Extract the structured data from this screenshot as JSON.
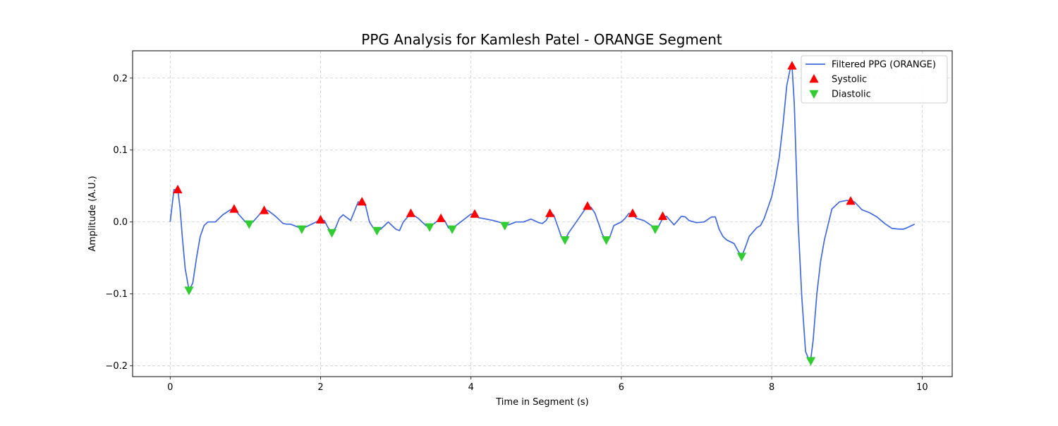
{
  "chart_data": {
    "type": "line",
    "title": "PPG Analysis for Kamlesh Patel - ORANGE Segment",
    "xlabel": "Time in Segment (s)",
    "ylabel": "Amplitude (A.U.)",
    "xlim": [
      -0.5,
      10.4
    ],
    "ylim": [
      -0.215,
      0.238
    ],
    "xticks": [
      0,
      2,
      4,
      6,
      8,
      10
    ],
    "xtick_labels": [
      "0",
      "2",
      "4",
      "6",
      "8",
      "10"
    ],
    "yticks": [
      -0.2,
      -0.1,
      0.0,
      0.1,
      0.2
    ],
    "ytick_labels": [
      "−0.2",
      "−0.1",
      "0.0",
      "0.1",
      "0.2"
    ],
    "grid": true,
    "legend_position": "top-right",
    "series": [
      {
        "name": "Filtered PPG (ORANGE)",
        "kind": "line",
        "color": "#4169e1",
        "x": [
          0.0,
          0.05,
          0.1,
          0.13,
          0.16,
          0.2,
          0.25,
          0.3,
          0.35,
          0.4,
          0.45,
          0.5,
          0.55,
          0.6,
          0.7,
          0.8,
          0.85,
          0.9,
          1.0,
          1.05,
          1.1,
          1.2,
          1.25,
          1.3,
          1.4,
          1.5,
          1.55,
          1.6,
          1.7,
          1.75,
          1.8,
          1.9,
          2.0,
          2.05,
          2.1,
          2.15,
          2.2,
          2.25,
          2.3,
          2.4,
          2.5,
          2.55,
          2.6,
          2.65,
          2.7,
          2.75,
          2.8,
          2.9,
          3.0,
          3.05,
          3.1,
          3.2,
          3.3,
          3.4,
          3.45,
          3.5,
          3.6,
          3.65,
          3.7,
          3.75,
          3.8,
          3.9,
          4.0,
          4.05,
          4.1,
          4.2,
          4.3,
          4.4,
          4.45,
          4.5,
          4.6,
          4.7,
          4.8,
          4.9,
          4.95,
          5.0,
          5.05,
          5.1,
          5.2,
          5.25,
          5.3,
          5.4,
          5.5,
          5.55,
          5.6,
          5.65,
          5.7,
          5.75,
          5.8,
          5.85,
          5.9,
          6.0,
          6.05,
          6.1,
          6.15,
          6.2,
          6.3,
          6.4,
          6.45,
          6.5,
          6.55,
          6.6,
          6.65,
          6.7,
          6.8,
          6.85,
          6.9,
          7.0,
          7.1,
          7.2,
          7.25,
          7.3,
          7.35,
          7.4,
          7.5,
          7.55,
          7.6,
          7.65,
          7.7,
          7.8,
          7.85,
          7.9,
          8.0,
          8.05,
          8.1,
          8.15,
          8.2,
          8.25,
          8.27,
          8.3,
          8.35,
          8.4,
          8.45,
          8.5,
          8.52,
          8.55,
          8.6,
          8.65,
          8.7,
          8.8,
          8.9,
          9.0,
          9.05,
          9.1,
          9.2,
          9.3,
          9.4,
          9.5,
          9.6,
          9.7,
          9.75,
          9.8,
          9.9
        ],
        "y": [
          0.0,
          0.045,
          0.045,
          0.02,
          -0.02,
          -0.065,
          -0.095,
          -0.085,
          -0.05,
          -0.02,
          -0.005,
          0.0,
          0.0,
          0.0,
          0.01,
          0.017,
          0.018,
          0.012,
          0.0,
          -0.003,
          0.0,
          0.012,
          0.016,
          0.016,
          0.008,
          -0.002,
          -0.003,
          -0.003,
          -0.007,
          -0.01,
          -0.007,
          -0.002,
          0.003,
          0.002,
          -0.008,
          -0.015,
          -0.008,
          0.005,
          0.01,
          0.002,
          0.028,
          0.027,
          0.022,
          0.0,
          -0.008,
          -0.012,
          -0.01,
          0.0,
          -0.01,
          -0.012,
          0.0,
          0.012,
          0.005,
          -0.005,
          -0.007,
          -0.003,
          0.005,
          0.002,
          -0.008,
          -0.01,
          -0.005,
          0.003,
          0.011,
          0.011,
          0.006,
          0.004,
          0.002,
          -0.001,
          -0.003,
          -0.004,
          0.0,
          0.0,
          0.004,
          -0.001,
          -0.002,
          0.002,
          0.012,
          0.01,
          -0.02,
          -0.025,
          -0.015,
          0.0,
          0.015,
          0.022,
          0.02,
          0.012,
          -0.003,
          -0.018,
          -0.026,
          -0.02,
          -0.005,
          0.0,
          0.005,
          0.012,
          0.011,
          0.005,
          0.002,
          -0.005,
          -0.01,
          -0.005,
          0.005,
          0.008,
          0.002,
          -0.004,
          0.008,
          0.007,
          0.002,
          -0.001,
          0.0,
          0.007,
          0.007,
          -0.01,
          -0.02,
          -0.025,
          -0.03,
          -0.04,
          -0.048,
          -0.035,
          -0.02,
          -0.008,
          -0.005,
          0.005,
          0.035,
          0.06,
          0.09,
          0.135,
          0.19,
          0.215,
          0.217,
          0.165,
          0.0,
          -0.105,
          -0.18,
          -0.193,
          -0.19,
          -0.165,
          -0.1,
          -0.055,
          -0.025,
          0.018,
          0.028,
          0.03,
          0.029,
          0.028,
          0.017,
          0.013,
          0.007,
          -0.002,
          -0.009,
          -0.01,
          -0.01,
          -0.008,
          -0.003
        ]
      },
      {
        "name": "Systolic",
        "kind": "marker",
        "marker": "triangle-up",
        "color": "#ff0000",
        "x": [
          0.1,
          0.85,
          1.25,
          2.0,
          2.55,
          3.2,
          3.6,
          4.05,
          5.05,
          5.55,
          6.15,
          6.55,
          8.27,
          9.05
        ],
        "y": [
          0.045,
          0.018,
          0.016,
          0.003,
          0.028,
          0.012,
          0.005,
          0.011,
          0.012,
          0.022,
          0.012,
          0.008,
          0.217,
          0.029
        ]
      },
      {
        "name": "Diastolic",
        "kind": "marker",
        "marker": "triangle-down",
        "color": "#32cd32",
        "x": [
          0.25,
          1.05,
          1.75,
          2.15,
          2.75,
          3.45,
          3.75,
          4.45,
          5.25,
          5.8,
          6.45,
          7.6,
          8.52
        ],
        "y": [
          -0.095,
          -0.003,
          -0.01,
          -0.015,
          -0.012,
          -0.007,
          -0.01,
          -0.005,
          -0.025,
          -0.025,
          -0.01,
          -0.048,
          -0.193
        ]
      }
    ]
  }
}
